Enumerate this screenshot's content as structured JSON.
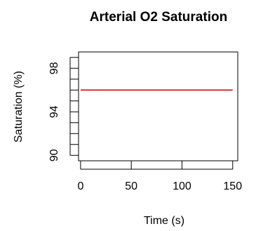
{
  "chart_data": {
    "type": "line",
    "title": "Arterial O2 Saturation",
    "xlabel": "Time (s)",
    "ylabel": "Saturation (%)",
    "xlim": [
      -2,
      155
    ],
    "ylim": [
      89.5,
      99.5
    ],
    "xticks": [
      0,
      50,
      100,
      150
    ],
    "xtick_labels": [
      "0",
      "50",
      "100",
      "150"
    ],
    "yticks": [
      90,
      91,
      92,
      93,
      94,
      95,
      96,
      97,
      98,
      99
    ],
    "ytick_labels": {
      "90": "90",
      "94": "94",
      "98": "98"
    },
    "grid": false,
    "series": [
      {
        "color": "#cc0000",
        "x": [
          0,
          150
        ],
        "y": [
          96,
          96
        ]
      }
    ]
  }
}
